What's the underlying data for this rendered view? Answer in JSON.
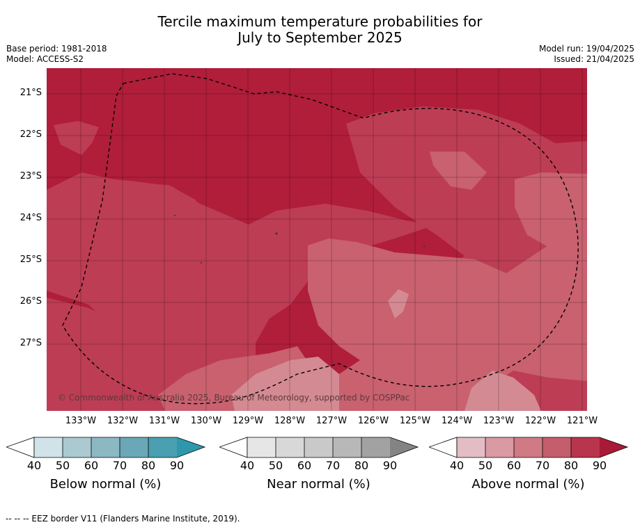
{
  "header": {
    "title_line1": "Tercile maximum temperature probabilities for",
    "title_line2": "July to September 2025",
    "base_period": "Base period: 1981-2018",
    "model": "Model: ACCESS-S2",
    "model_run": "Model run: 19/04/2025",
    "issued": "Issued: 21/04/2025"
  },
  "map": {
    "lat_labels": [
      "21°S",
      "22°S",
      "23°S",
      "24°S",
      "25°S",
      "26°S",
      "27°S"
    ],
    "lon_labels": [
      "133°W",
      "132°W",
      "131°W",
      "130°W",
      "129°W",
      "128°W",
      "127°W",
      "126°W",
      "125°W",
      "124°W",
      "123°W",
      "122°W",
      "121°W"
    ],
    "copyright": "© Commonwealth of Australia 2025, Bureau of Meteorology, supported by COSPPac",
    "colors": {
      "above_80_90": "#b01e3a",
      "above_70_80": "#bd3d55",
      "above_60_70": "#c9616f",
      "above_50_60": "#d48a93"
    }
  },
  "colorbars": [
    {
      "title": "Below normal (%)",
      "ticks": [
        "40",
        "50",
        "60",
        "70",
        "80",
        "90"
      ],
      "colors": [
        "#cfe3e8",
        "#aac9d0",
        "#8bb8c3",
        "#6aa8b7",
        "#4a9fb0",
        "#2f97ab"
      ]
    },
    {
      "title": "Near normal (%)",
      "ticks": [
        "40",
        "50",
        "60",
        "70",
        "80",
        "90"
      ],
      "colors": [
        "#e6e6e6",
        "#d8d8d8",
        "#c9c9c9",
        "#b8b8b8",
        "#a2a2a2",
        "#848484"
      ]
    },
    {
      "title": "Above normal (%)",
      "ticks": [
        "40",
        "50",
        "60",
        "70",
        "80",
        "90"
      ],
      "colors": [
        "#e4bcc4",
        "#d99aa3",
        "#cf7a85",
        "#c45e6c",
        "#b8354d",
        "#a81a36"
      ]
    }
  ],
  "footer": {
    "legend_text": "--  --  -- EEZ border V11 (Flanders Marine Institute, 2019)."
  }
}
